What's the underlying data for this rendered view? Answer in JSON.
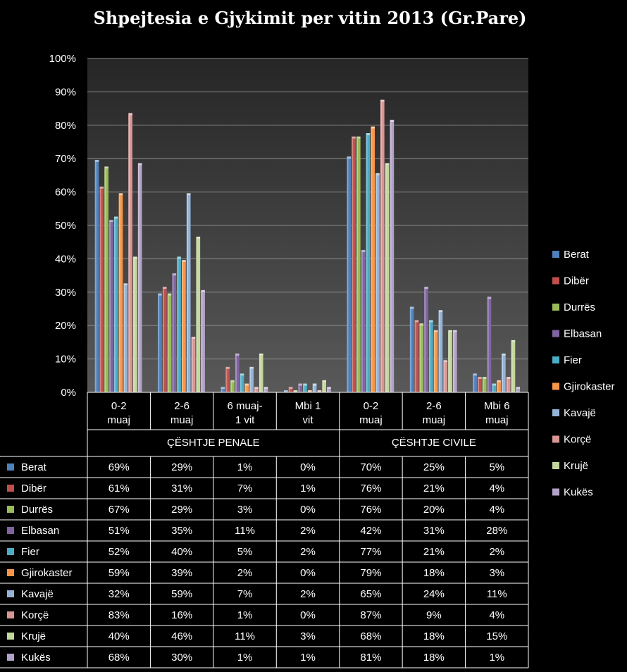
{
  "chart_data": {
    "type": "bar",
    "title": "Shpejtesia e Gjykimit per vitin 2013 (Gr.Pare)",
    "y_ticks": [
      "0%",
      "10%",
      "20%",
      "30%",
      "40%",
      "50%",
      "60%",
      "70%",
      "80%",
      "90%",
      "100%"
    ],
    "ylim": [
      0,
      100
    ],
    "grid": true,
    "legend_position": "right",
    "categories": [
      [
        "0-2",
        "muaj"
      ],
      [
        "2-6",
        "muaj"
      ],
      [
        "6 muaj-",
        "1 vit"
      ],
      [
        "Mbi 1",
        "vit"
      ],
      [
        "0-2",
        "muaj"
      ],
      [
        "2-6",
        "muaj"
      ],
      [
        "Mbi 6",
        "muaj"
      ]
    ],
    "groups": [
      {
        "label": "ÇËSHTJE PENALE",
        "span": 4
      },
      {
        "label": "ÇËSHTJE CIVILE",
        "span": 3
      }
    ],
    "series": [
      {
        "name": "Berat",
        "color": "#4F81BD",
        "values": [
          69,
          29,
          1,
          0,
          70,
          25,
          5
        ]
      },
      {
        "name": "Dibër",
        "color": "#C0504D",
        "values": [
          61,
          31,
          7,
          1,
          76,
          21,
          4
        ]
      },
      {
        "name": "Durrës",
        "color": "#9BBB59",
        "values": [
          67,
          29,
          3,
          0,
          76,
          20,
          4
        ]
      },
      {
        "name": "Elbasan",
        "color": "#8064A2",
        "values": [
          51,
          35,
          11,
          2,
          42,
          31,
          28
        ]
      },
      {
        "name": "Fier",
        "color": "#4BACC6",
        "values": [
          52,
          40,
          5,
          2,
          77,
          21,
          2
        ]
      },
      {
        "name": "Gjirokaster",
        "color": "#F79646",
        "values": [
          59,
          39,
          2,
          0,
          79,
          18,
          3
        ]
      },
      {
        "name": "Kavajë",
        "color": "#95B3D7",
        "values": [
          32,
          59,
          7,
          2,
          65,
          24,
          11
        ]
      },
      {
        "name": "Korçë",
        "color": "#D99694",
        "values": [
          83,
          16,
          1,
          0,
          87,
          9,
          4
        ]
      },
      {
        "name": "Krujë",
        "color": "#C3D69B",
        "values": [
          40,
          46,
          11,
          3,
          68,
          18,
          15
        ]
      },
      {
        "name": "Kukës",
        "color": "#B3A2C7",
        "values": [
          68,
          30,
          1,
          1,
          81,
          18,
          1
        ]
      }
    ],
    "table_unit": "%"
  }
}
